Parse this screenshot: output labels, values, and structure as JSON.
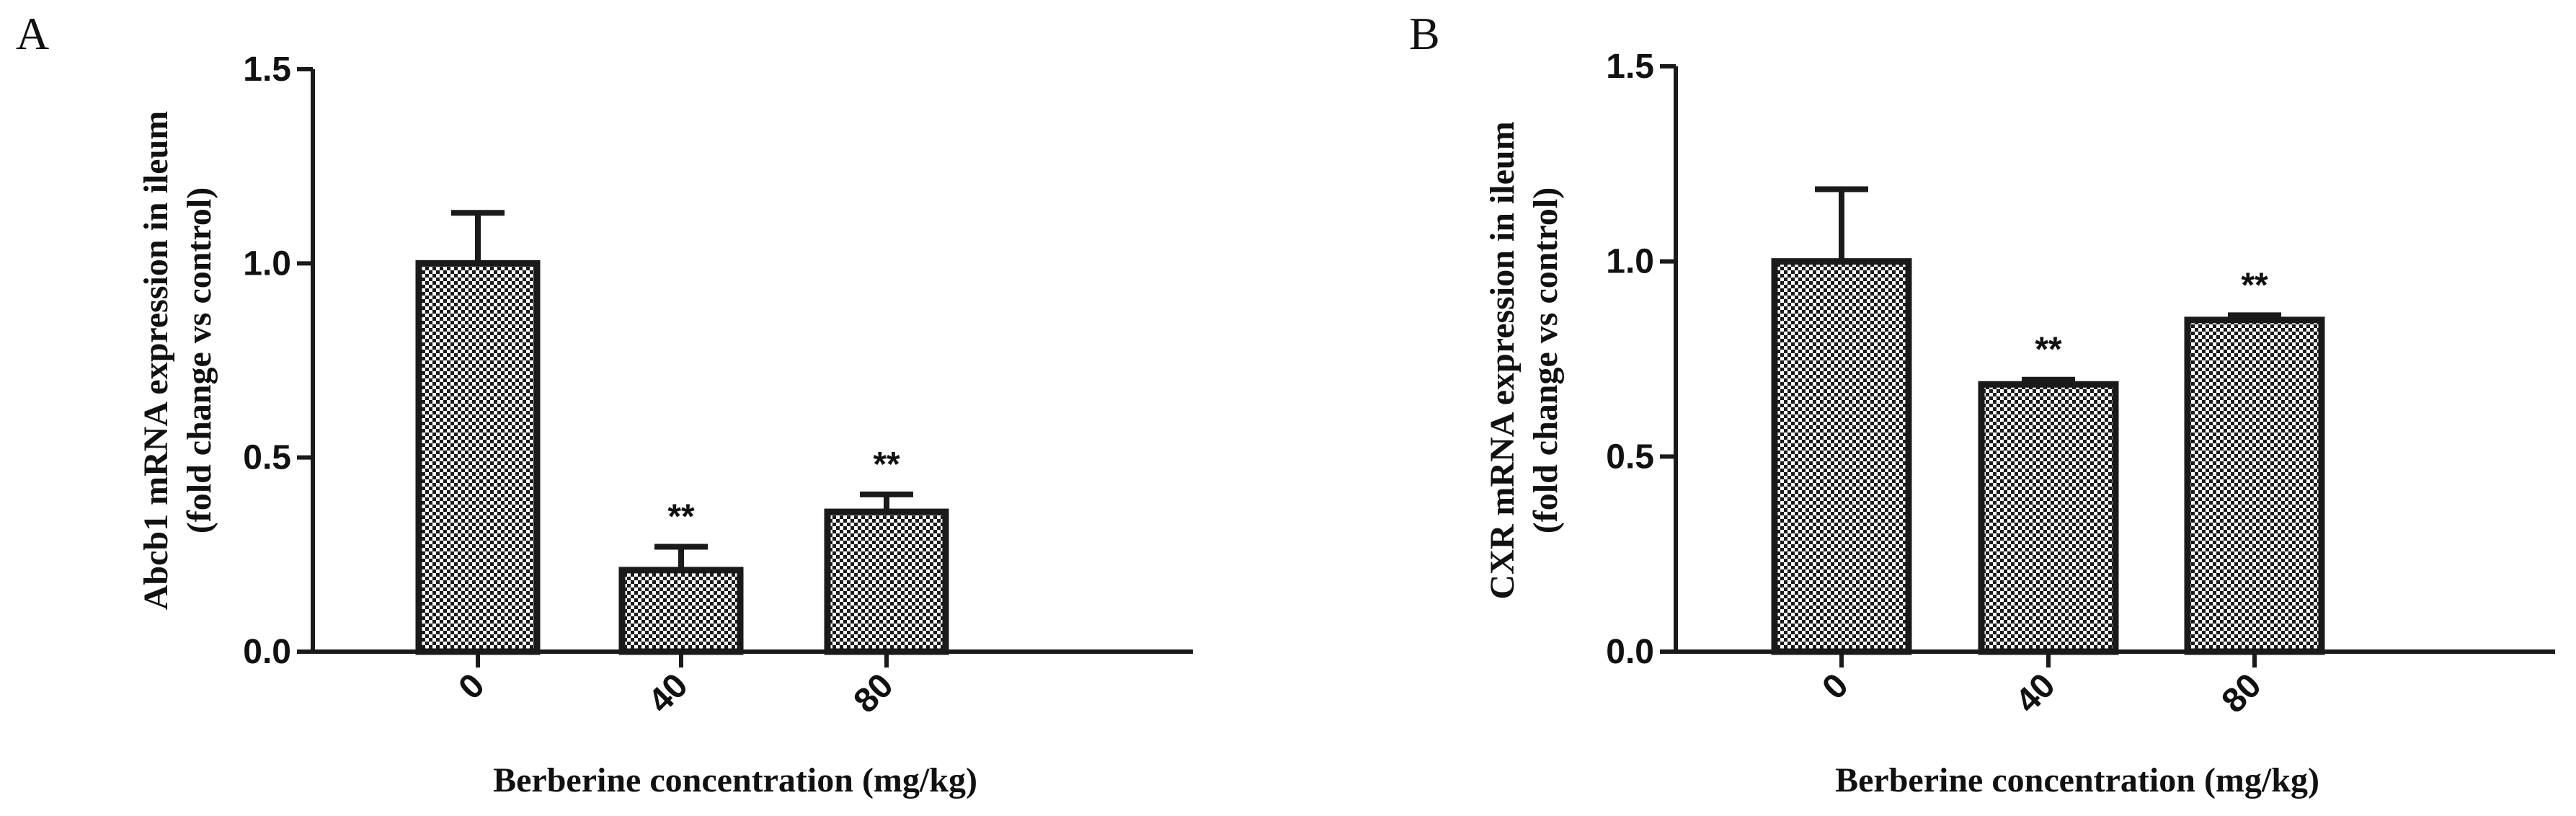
{
  "chart_data": [
    {
      "panel": "A",
      "type": "bar",
      "categories": [
        "0",
        "40",
        "80"
      ],
      "values": [
        1.0,
        0.21,
        0.36
      ],
      "errors": [
        0.13,
        0.06,
        0.045
      ],
      "significance": [
        "",
        "**",
        "**"
      ],
      "ylabel_line1": "Abcb1 mRNA expression in ileum",
      "ylabel_line2": "(fold change vs control)",
      "xlabel": "Berberine concentration (mg/kg)",
      "ylim": [
        0,
        1.5
      ],
      "yticks": [
        "0.0",
        "0.5",
        "1.0",
        "1.5"
      ],
      "ytick_values": [
        0,
        0.5,
        1.0,
        1.5
      ]
    },
    {
      "panel": "B",
      "type": "bar",
      "categories": [
        "0",
        "40",
        "80"
      ],
      "values": [
        1.0,
        0.685,
        0.85
      ],
      "errors": [
        0.185,
        0.012,
        0.012
      ],
      "significance": [
        "",
        "**",
        "**"
      ],
      "ylabel_line1": "CXR mRNA expression in ileum",
      "ylabel_line2": "(fold change vs control)",
      "xlabel": "Berberine concentration (mg/kg)",
      "ylim": [
        0,
        1.5
      ],
      "yticks": [
        "0.0",
        "0.5",
        "1.0",
        "1.5"
      ],
      "ytick_values": [
        0,
        0.5,
        1.0,
        1.5
      ]
    }
  ],
  "colors": {
    "ink": "#1a1a1a",
    "bar_pattern_dark": "#1a1a1a",
    "bar_pattern_light": "#ffffff"
  }
}
